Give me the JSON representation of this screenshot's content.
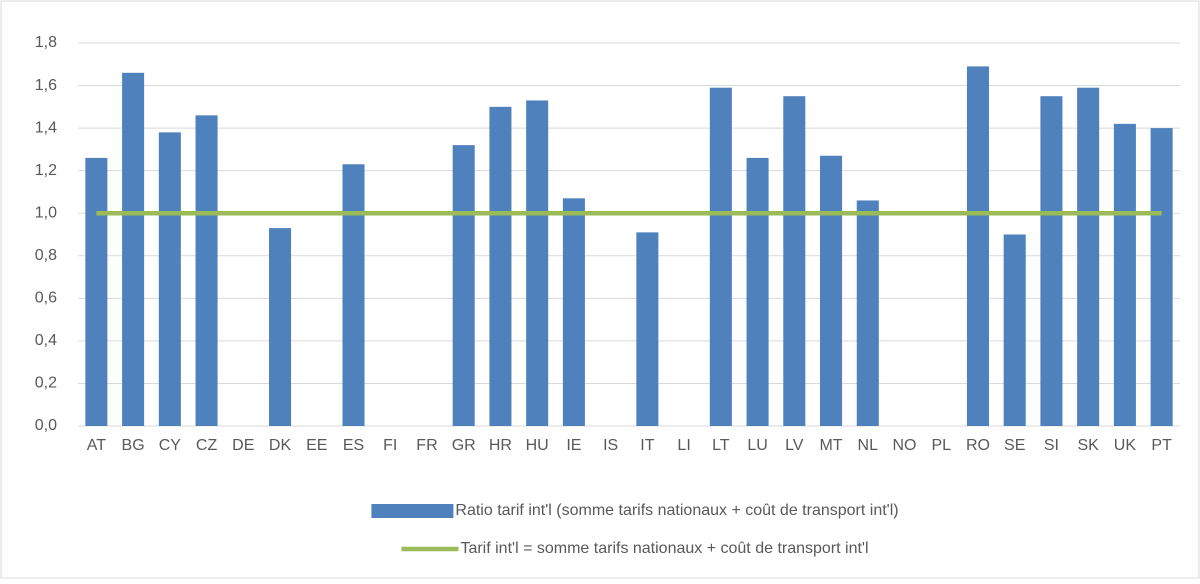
{
  "chart_data": {
    "type": "bar",
    "categories": [
      "AT",
      "BG",
      "CY",
      "CZ",
      "DE",
      "DK",
      "EE",
      "ES",
      "FI",
      "FR",
      "GR",
      "HR",
      "HU",
      "IE",
      "IS",
      "IT",
      "LI",
      "LT",
      "LU",
      "LV",
      "MT",
      "NL",
      "NO",
      "PL",
      "RO",
      "SE",
      "SI",
      "SK",
      "UK",
      "PT"
    ],
    "series": [
      {
        "name": "Ratio tarif int'l (somme tarifs nationaux + coût de transport int'l)",
        "type": "bar",
        "color": "#4f81bd",
        "values": [
          1.26,
          1.66,
          1.38,
          1.46,
          null,
          0.93,
          null,
          1.23,
          null,
          null,
          1.32,
          1.5,
          1.53,
          1.07,
          null,
          0.91,
          null,
          1.59,
          1.26,
          1.55,
          1.27,
          1.06,
          null,
          null,
          1.69,
          0.9,
          1.55,
          1.59,
          1.42,
          1.4
        ]
      },
      {
        "name": "Tarif int'l = somme tarifs nationaux + coût de transport int'l",
        "type": "line",
        "color": "#9bbb59",
        "values": [
          1,
          1,
          1,
          1,
          1,
          1,
          1,
          1,
          1,
          1,
          1,
          1,
          1,
          1,
          1,
          1,
          1,
          1,
          1,
          1,
          1,
          1,
          1,
          1,
          1,
          1,
          1,
          1,
          1,
          1
        ]
      }
    ],
    "ylim": [
      0,
      1.8
    ],
    "yticks": [
      {
        "value": 0,
        "label": "0,0"
      },
      {
        "value": 0.2,
        "label": "0,2"
      },
      {
        "value": 0.4,
        "label": "0,4"
      },
      {
        "value": 0.6,
        "label": "0,6"
      },
      {
        "value": 0.8,
        "label": "0,8"
      },
      {
        "value": 1,
        "label": "1,0"
      },
      {
        "value": 1.2,
        "label": "1,2"
      },
      {
        "value": 1.4,
        "label": "1,4"
      },
      {
        "value": 1.6,
        "label": "1,6"
      },
      {
        "value": 1.8,
        "label": "1,8"
      }
    ],
    "grid": true,
    "legend": "bottom"
  }
}
